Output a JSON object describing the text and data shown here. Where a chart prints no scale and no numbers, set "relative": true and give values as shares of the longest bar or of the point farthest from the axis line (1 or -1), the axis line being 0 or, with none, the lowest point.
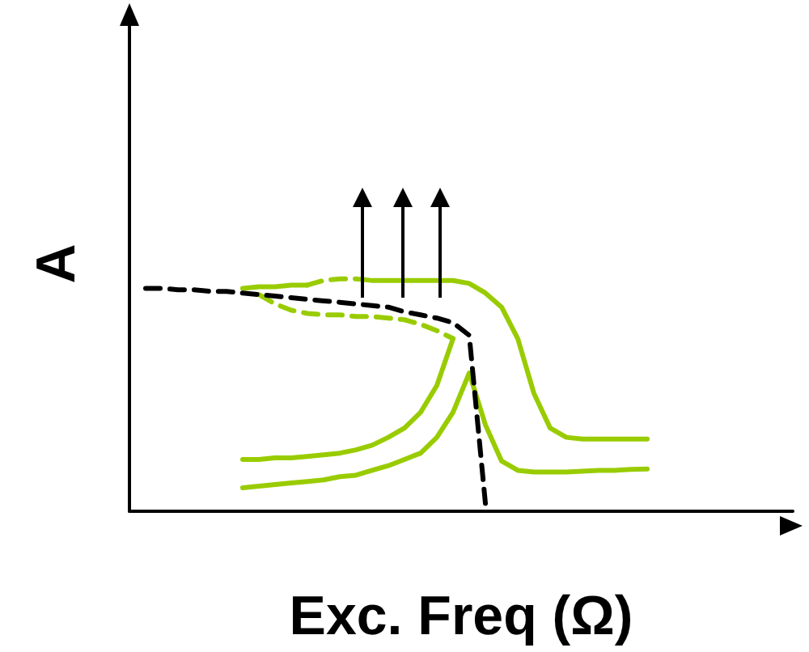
{
  "chart_data": {
    "type": "line",
    "relative": true,
    "xlabel": "Exc. Freq (Ω)",
    "ylabel": "A",
    "grid": false,
    "categories": [
      null,
      null,
      null,
      null,
      null,
      null,
      null,
      null,
      null,
      null,
      null,
      null,
      null,
      null,
      null,
      null,
      null,
      null,
      null,
      null,
      null,
      null,
      null,
      null,
      null,
      null,
      null,
      null,
      null,
      null,
      null,
      null,
      null,
      null,
      null,
      null,
      null,
      null,
      null,
      null,
      null,
      null
    ],
    "series": [
      {
        "color": "#99cc00",
        "line_style": "solid",
        "values": [
          null,
          null,
          null,
          null,
          null,
          null,
          null,
          0.959,
          0.966,
          0.966,
          0.973,
          0.973,
          null,
          null,
          null,
          null,
          null,
          null,
          null,
          null,
          null,
          null,
          null,
          null,
          null,
          null,
          null,
          null,
          null,
          null,
          null,
          null,
          null,
          null,
          null,
          null,
          null,
          null,
          null,
          null,
          null,
          null
        ]
      },
      {
        "color": "#99cc00",
        "line_style": "dashed",
        "values": [
          null,
          null,
          null,
          null,
          null,
          null,
          null,
          null,
          null,
          null,
          null,
          0.973,
          0.993,
          1.0,
          1.0,
          0.993,
          null,
          null,
          null,
          null,
          null,
          null,
          null,
          null,
          null,
          null,
          null,
          null,
          null,
          null,
          null,
          null,
          null,
          null,
          null,
          null,
          null,
          null,
          null,
          null,
          null,
          null
        ]
      },
      {
        "color": "#99cc00",
        "line_style": "solid",
        "values": [
          null,
          null,
          null,
          null,
          null,
          null,
          null,
          null,
          null,
          null,
          null,
          null,
          null,
          null,
          null,
          0.993,
          0.993,
          0.993,
          0.993,
          0.993,
          0.993,
          0.98,
          0.939,
          0.878,
          0.743,
          0.507,
          0.358,
          0.318,
          0.311,
          0.311,
          0.311,
          0.311,
          0.311,
          null,
          null,
          null,
          null,
          null,
          null,
          null,
          null,
          null
        ]
      },
      {
        "color": "#99cc00",
        "line_style": "dashed",
        "values": [
          null,
          null,
          null,
          null,
          null,
          null,
          null,
          null,
          0.932,
          0.892,
          0.865,
          0.851,
          0.845,
          0.845,
          0.838,
          0.838,
          0.831,
          0.824,
          0.804,
          0.777,
          0.743,
          null,
          null,
          null,
          null,
          null,
          null,
          null,
          null,
          null,
          null,
          null,
          null,
          null,
          null,
          null,
          null,
          null,
          null,
          null,
          null,
          null
        ]
      },
      {
        "color": "#99cc00",
        "line_style": "solid",
        "values": [
          null,
          null,
          null,
          null,
          null,
          null,
          null,
          0.223,
          0.223,
          0.23,
          0.23,
          0.236,
          0.243,
          0.25,
          0.264,
          0.284,
          0.318,
          0.358,
          0.426,
          0.541,
          0.743,
          null,
          null,
          null,
          null,
          null,
          null,
          null,
          null,
          null,
          null,
          null,
          null,
          null,
          null,
          null,
          null,
          null,
          null,
          null,
          null,
          null
        ]
      },
      {
        "color": "#99cc00",
        "line_style": "solid",
        "values": [
          null,
          null,
          null,
          null,
          null,
          null,
          null,
          0.101,
          0.108,
          0.115,
          0.122,
          0.128,
          0.135,
          0.149,
          0.155,
          0.176,
          0.196,
          0.223,
          0.25,
          0.318,
          0.426,
          0.595,
          0.372,
          0.216,
          0.176,
          0.169,
          0.169,
          0.169,
          0.172,
          0.176,
          0.176,
          0.18,
          0.182,
          null,
          null,
          null,
          null,
          null,
          null,
          null,
          null,
          null
        ]
      },
      {
        "color": "#000000",
        "line_style": "dashed",
        "values": [
          null,
          0.959,
          0.959,
          0.953,
          0.953,
          0.946,
          0.946,
          0.939,
          0.932,
          0.926,
          0.919,
          0.912,
          0.905,
          0.899,
          0.892,
          0.885,
          0.878,
          0.858,
          0.845,
          0.831,
          0.811,
          0.757,
          0.034,
          null,
          null,
          null,
          null,
          null,
          null,
          null,
          null,
          null,
          null,
          null,
          null,
          null,
          null,
          null,
          null,
          null,
          null,
          null
        ]
      }
    ]
  }
}
